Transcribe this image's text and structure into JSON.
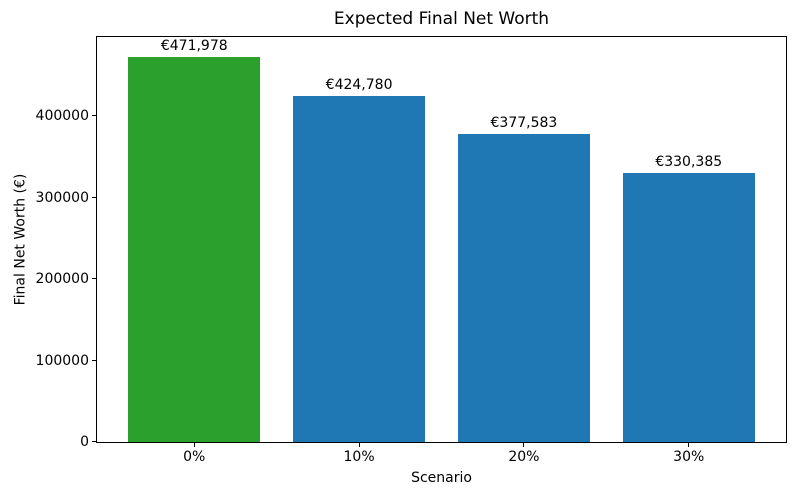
{
  "figure": {
    "background": "#ffffff",
    "axis_color": "#000000",
    "text_color": "#000000"
  },
  "chart_data": {
    "type": "bar",
    "title": "Expected Final Net Worth",
    "xlabel": "Scenario",
    "ylabel": "Final Net Worth (€)",
    "categories": [
      "0%",
      "10%",
      "20%",
      "30%"
    ],
    "values": [
      471978,
      424780,
      377583,
      330385
    ],
    "bar_labels": [
      "€471,978",
      "€424,780",
      "€377,583",
      "€330,385"
    ],
    "bar_colors": [
      "#2ca02c",
      "#1f77b4",
      "#1f77b4",
      "#1f77b4"
    ],
    "highlight_color": "#2ca02c",
    "default_bar_color": "#1f77b4",
    "yticks": [
      0,
      100000,
      200000,
      300000,
      400000
    ],
    "ytick_labels": [
      "0",
      "100000",
      "200000",
      "300000",
      "400000"
    ],
    "ylim": [
      0,
      497000
    ],
    "xlim": [
      -0.59,
      3.59
    ],
    "bar_width": 0.8,
    "grid": false,
    "legend_position": "none"
  }
}
